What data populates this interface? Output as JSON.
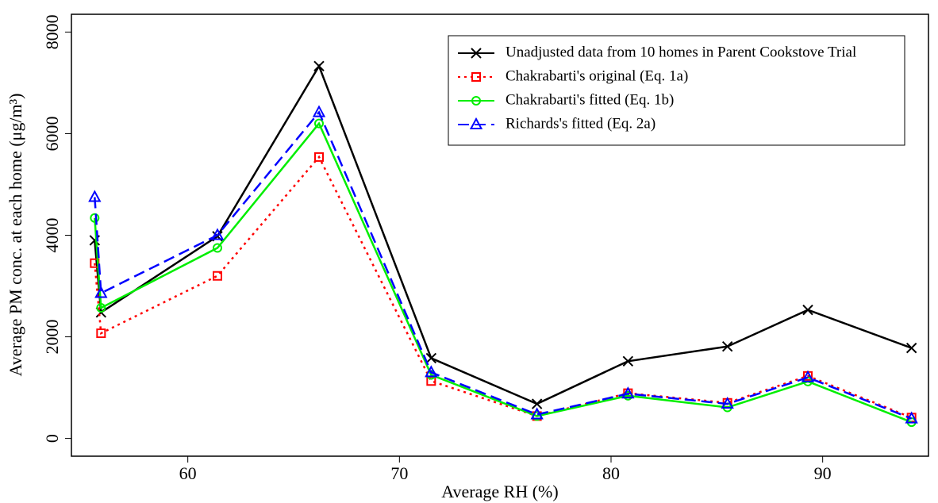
{
  "chart_data": {
    "type": "line",
    "x_label": "Average RH (%)",
    "y_label": "Average PM conc. at each home (μg/m³)",
    "x": [
      55.6,
      55.9,
      61.4,
      66.2,
      71.5,
      76.5,
      80.8,
      85.5,
      89.3,
      94.2
    ],
    "xlim": [
      54.5,
      95
    ],
    "xticks": [
      60,
      70,
      80,
      90
    ],
    "ylim": [
      -350,
      8350
    ],
    "yticks": [
      0,
      2000,
      4000,
      6000,
      8000
    ],
    "legend": "top-right",
    "series": [
      {
        "name": "Unadjusted data from 10 homes in Parent Cookstove Trial",
        "color": "#000000",
        "marker": "x",
        "dash": "solid",
        "values": [
          3900,
          2480,
          3980,
          7330,
          1580,
          680,
          1520,
          1810,
          2530,
          1780
        ]
      },
      {
        "name": "Chakrabarti's original (Eq. 1a)",
        "color": "#ff0000",
        "marker": "square",
        "dash": "dotted",
        "values": [
          3450,
          2070,
          3200,
          5540,
          1130,
          440,
          890,
          700,
          1230,
          410
        ]
      },
      {
        "name": "Chakrabarti's fitted (Eq. 1b)",
        "color": "#00ee00",
        "marker": "circle",
        "dash": "solid",
        "values": [
          4340,
          2570,
          3750,
          6200,
          1250,
          440,
          840,
          610,
          1120,
          320
        ]
      },
      {
        "name": "Richards's fitted (Eq. 2a)",
        "color": "#0000ff",
        "marker": "triangle",
        "dash": "dashed",
        "values": [
          4750,
          2860,
          4000,
          6420,
          1300,
          470,
          880,
          680,
          1200,
          390
        ]
      }
    ]
  }
}
